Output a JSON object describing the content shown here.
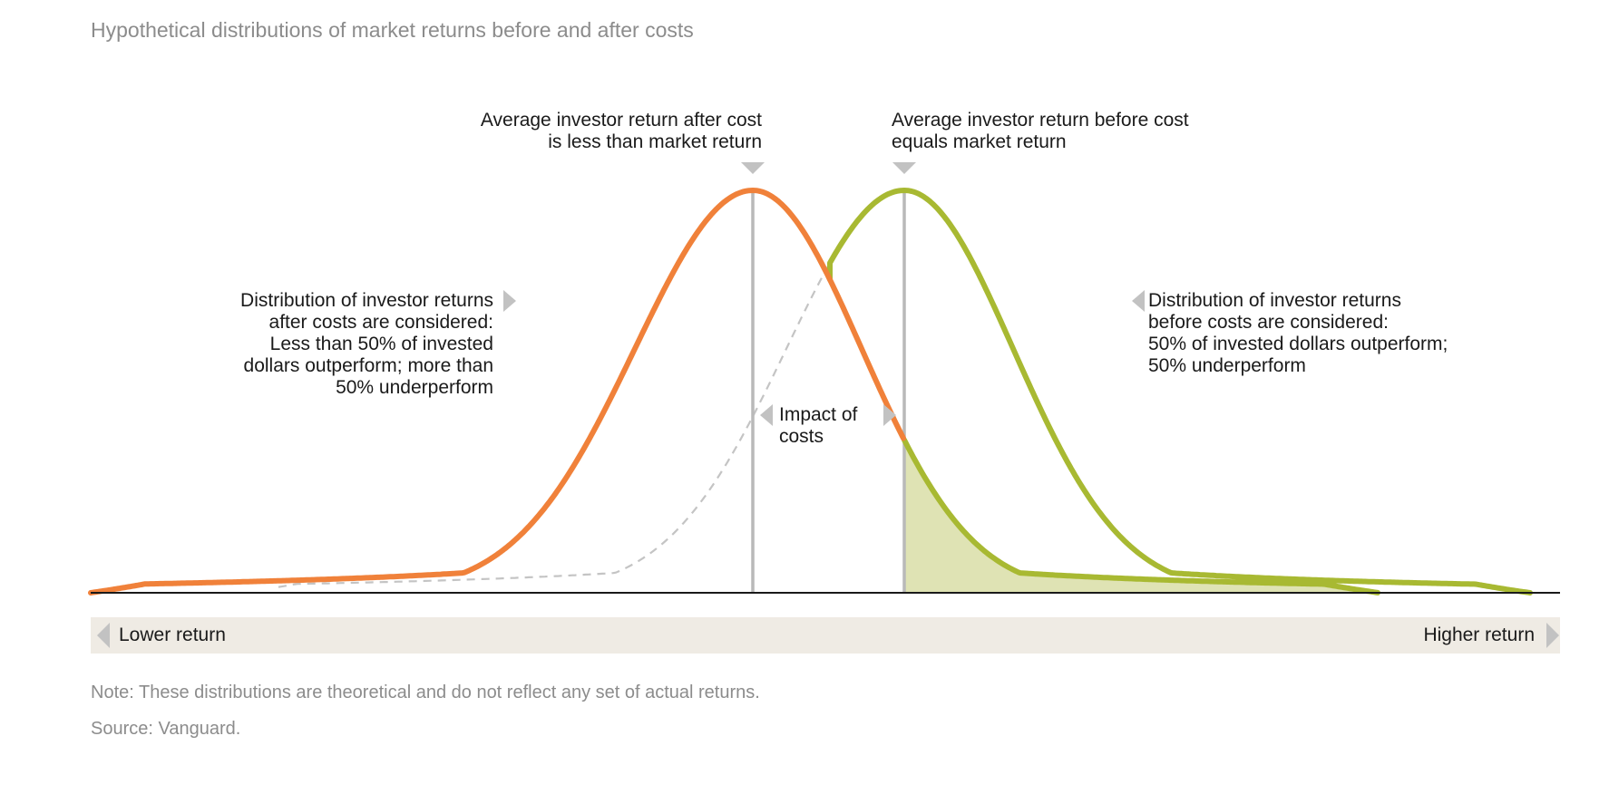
{
  "title": "Hypothetical distributions of market returns before and after costs",
  "annotations": {
    "after_mean": [
      "Average investor return after cost",
      "is less than market return"
    ],
    "before_mean": [
      "Average investor return before cost",
      "equals market return"
    ],
    "after_dist": {
      "heading": [
        "Distribution of investor returns",
        "after costs are considered:"
      ],
      "body": [
        "Less than 50% of invested",
        "dollars outperform; more than",
        "50% underperform"
      ]
    },
    "before_dist": {
      "heading": [
        "Distribution of investor returns",
        "before costs are considered:"
      ],
      "body": [
        "50% of invested dollars outperform;",
        "50% underperform"
      ]
    },
    "impact": [
      "Impact of",
      "costs"
    ]
  },
  "axis": {
    "low_label": "Lower return",
    "high_label": "Higher return"
  },
  "note": "Note: These distributions are theoretical and do not reflect any set of actual returns.",
  "source": "Source: Vanguard.",
  "colors": {
    "after_cost": "#f0813a",
    "before_cost": "#a8b932",
    "shade": "#dfe3b4",
    "dashed": "#c4c4c4",
    "mean_line": "#b9b9b9",
    "marker": "#c2c2c2",
    "baseline": "#1a1a1a"
  },
  "chart_data": {
    "type": "area",
    "title": "Hypothetical distributions of market returns before and after costs",
    "xlabel": "",
    "ylabel": "",
    "series": [
      {
        "name": "Distribution of investor returns after costs are considered"
      },
      {
        "name": "Distribution of investor returns before costs are considered"
      }
    ],
    "shaded_region": "outperforming area of after-cost distribution (right of market return)"
  }
}
